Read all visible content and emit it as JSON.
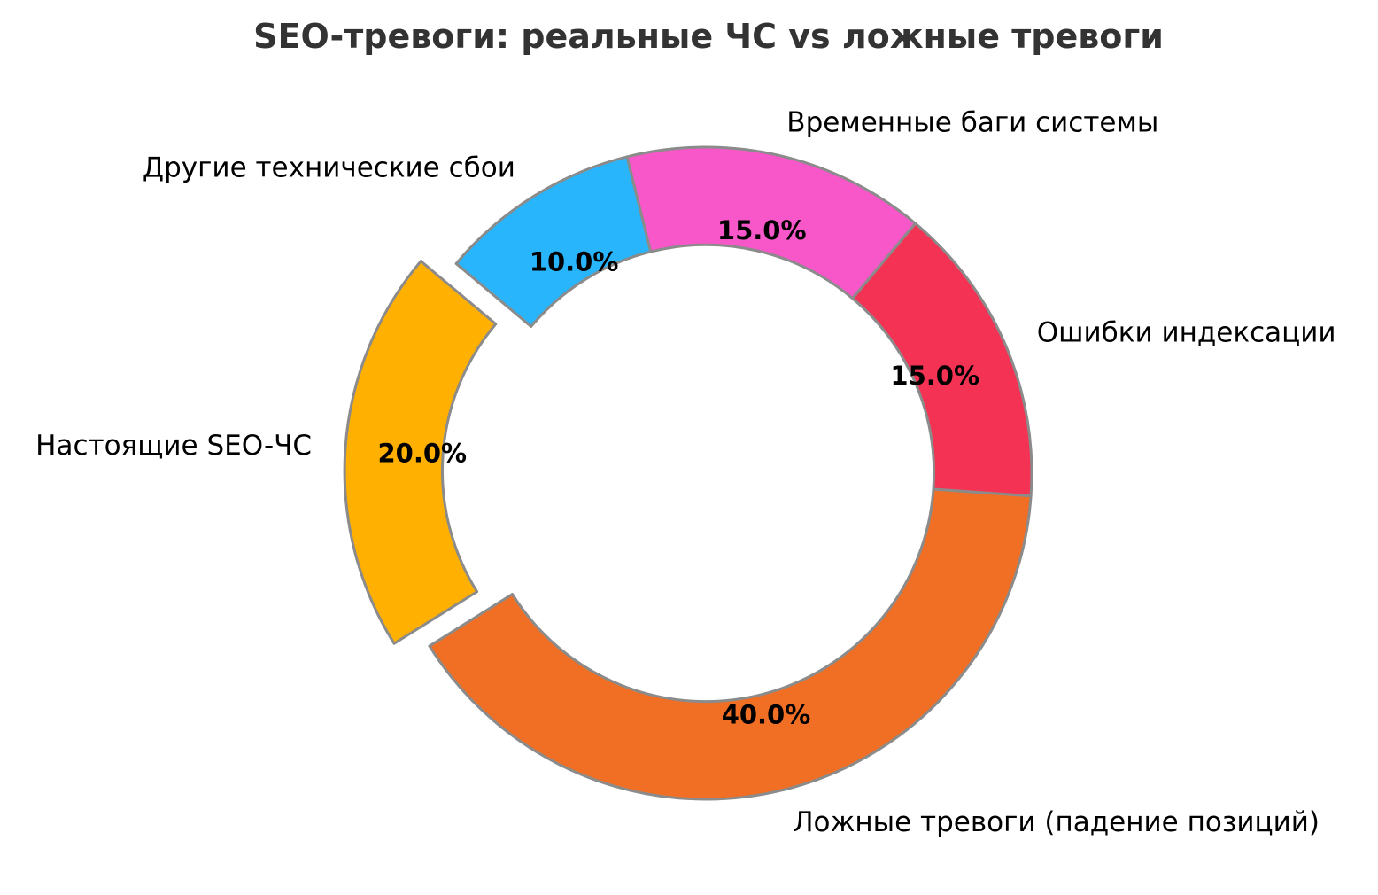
{
  "title": "SEO-тревоги: реальные ЧС vs ложные тревоги",
  "chart_data": {
    "type": "pie",
    "subtype": "donut",
    "title": "SEO-тревоги: реальные ЧС vs ложные тревоги",
    "background": "#ffffff",
    "edge_color": "#8B8B8B",
    "edge_width": 3,
    "start_angle": 140,
    "direction": "counterclockwise",
    "inner_radius_ratio": 0.7,
    "legend": "none",
    "units": "%",
    "categories": [
      "Настоящие SEO-ЧС",
      "Ложные тревоги (падение позиций)",
      "Ошибки индексации",
      "Временные баги системы",
      "Другие технические сбои"
    ],
    "values": [
      20.0,
      40.0,
      15.0,
      15.0,
      10.0
    ],
    "slices": [
      {
        "label": "Настоящие SEO-ЧС",
        "value": 20.0,
        "pct_label": "20.0%",
        "color": "#FFB000",
        "exploded": true
      },
      {
        "label": "Ложные тревоги (падение позиций)",
        "value": 40.0,
        "pct_label": "40.0%",
        "color": "#F06F24",
        "exploded": false
      },
      {
        "label": "Ошибки индексации",
        "value": 15.0,
        "pct_label": "15.0%",
        "color": "#F43253",
        "exploded": false
      },
      {
        "label": "Временные баги системы",
        "value": 15.0,
        "pct_label": "15.0%",
        "color": "#F757C8",
        "exploded": false
      },
      {
        "label": "Другие технические сбои",
        "value": 10.0,
        "pct_label": "10.0%",
        "color": "#28B5FB",
        "exploded": false
      }
    ]
  }
}
